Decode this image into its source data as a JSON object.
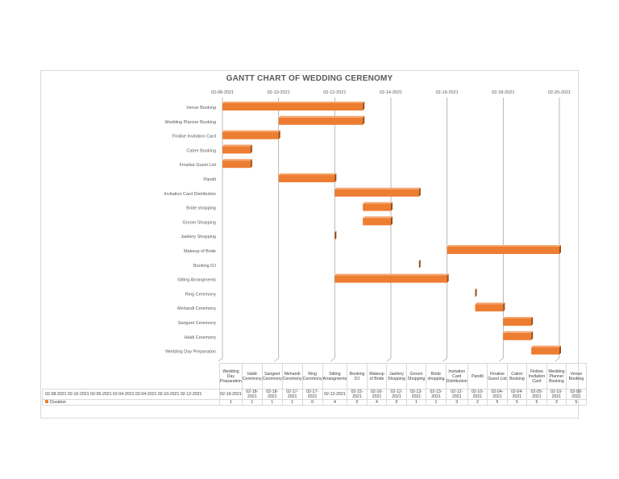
{
  "chart_data": {
    "type": "gantt-bar",
    "title": "GANTT CHART OF WEDDING CERENOMY",
    "x_axis": {
      "min": "02-08-2021",
      "max": "02-20-2021",
      "ticks": [
        "02-08-2021",
        "02-10-2021",
        "02-12-2021",
        "02-14-2021",
        "02-16-2021",
        "02-18-2021",
        "02-20-2021"
      ],
      "position": "top"
    },
    "grid": true,
    "bar_color": "#ed7d31",
    "series_name": "Duration",
    "tasks": [
      {
        "label": "Venue Booking",
        "table_label": "Venue Booking",
        "start": "02-08-2021",
        "duration": 5
      },
      {
        "label": "Wedding Planner Booking",
        "table_label": "Wedding Planner Booking",
        "start": "02-10-2021",
        "duration": 3
      },
      {
        "label": "Finilise Invitation Card",
        "table_label": "Finilise Invitation Card",
        "start": "02-05-2021",
        "duration": 5
      },
      {
        "label": "Catrer Booking",
        "table_label": "Catrer Booking",
        "start": "02-04-2021",
        "duration": 5
      },
      {
        "label": "Finalise Guest List",
        "table_label": "Finalise Guest List",
        "start": "02-04-2021",
        "duration": 5
      },
      {
        "label": "Pandit",
        "table_label": "Pandit",
        "start": "02-10-2021",
        "duration": 2
      },
      {
        "label": "Invitation Card Distribution",
        "table_label": "Invitation Card Distribution",
        "start": "02-12-2021",
        "duration": 3
      },
      {
        "label": "Bride shopping",
        "table_label": "Bride shopping",
        "start": "02-13-2021",
        "duration": 1
      },
      {
        "label": "Groom Shopping",
        "table_label": "Groom Shopping",
        "start": "02-13-2021",
        "duration": 1
      },
      {
        "label": "Jaellery Shopping",
        "table_label": "Jaellery Shopping",
        "start": "02-12-2021",
        "duration": 0
      },
      {
        "label": "Makeup of Bride",
        "table_label": "Makeup of Bride",
        "start": "02-16-2021",
        "duration": 4
      },
      {
        "label": "Booking DJ",
        "table_label": "Booking DJ",
        "start": "02-15-2021",
        "duration": 0
      },
      {
        "label": "Sitting Arrangments",
        "table_label": "Sitting Arrangments",
        "start": "02-12-2021",
        "duration": 4
      },
      {
        "label": "Ring Ceremony",
        "table_label": "Ring Ceremony",
        "start": "02-17-2021",
        "duration": 0
      },
      {
        "label": "Mehandi Ceremony",
        "table_label": "Mehandi Ceremony",
        "start": "02-17-2021",
        "duration": 1
      },
      {
        "label": "Sangeet Ceremony",
        "table_label": "Sangeet Ceremony",
        "start": "02-18-2021",
        "duration": 1
      },
      {
        "label": "Haldi Ceremony",
        "table_label": "Haldi Ceremony",
        "start": "02-18-2021",
        "duration": 1
      },
      {
        "label": "Wedding Day Preparation",
        "table_label": "Wedding Day Preparation",
        "start": "02-19-2021",
        "duration": 1
      }
    ],
    "table_start_row_header": "02-08-2021 02-10-2021 02-05-2021 02-04-2021 02-04-2021 02-10-2021 02-12-2021"
  }
}
